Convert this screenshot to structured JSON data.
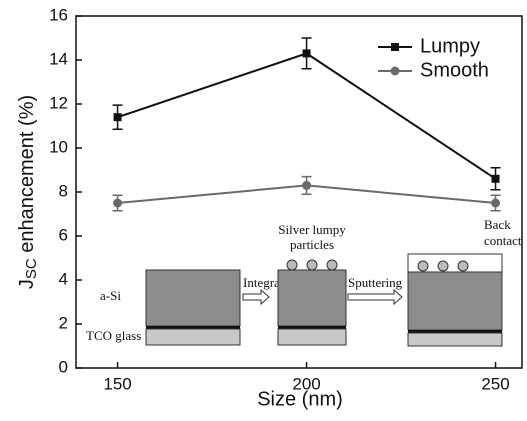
{
  "chart_data": {
    "type": "line",
    "x_label": "Size (nm)",
    "y_label": [
      "J",
      "SC",
      " enhancement (%)"
    ],
    "x": [
      150,
      200,
      250
    ],
    "series": [
      {
        "name": "Lumpy",
        "color": "#111111",
        "marker": "square",
        "values": [
          11.4,
          14.3,
          8.6
        ],
        "errors": [
          0.55,
          0.7,
          0.5
        ]
      },
      {
        "name": "Smooth",
        "color": "#6a6a6a",
        "marker": "circle",
        "values": [
          7.5,
          8.3,
          7.5
        ],
        "errors": [
          0.35,
          0.4,
          0.35
        ]
      }
    ],
    "xlim": [
      139,
      257
    ],
    "xticks": [
      150,
      200,
      250
    ],
    "ylim": [
      0,
      16
    ],
    "yticks": [
      0,
      2,
      4,
      6,
      8,
      10,
      12,
      14,
      16
    ],
    "legend": "upper right",
    "inset": {
      "layer_top": "a-Si",
      "layer_bottom": "TCO glass",
      "step_1": "Integration",
      "step_2": "Sputtering",
      "particles": [
        "Silver lumpy",
        "particles"
      ],
      "contact": [
        "Back",
        "contact"
      ]
    }
  }
}
